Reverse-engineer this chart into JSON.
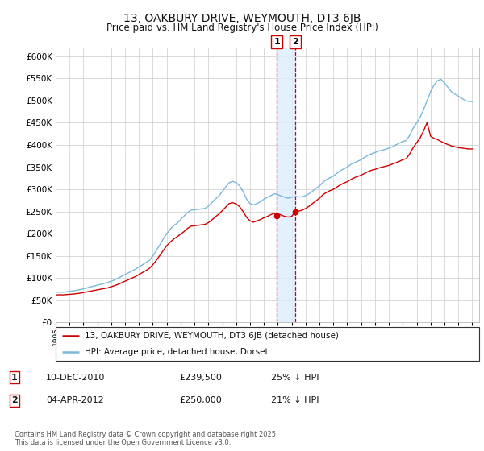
{
  "title": "13, OAKBURY DRIVE, WEYMOUTH, DT3 6JB",
  "subtitle": "Price paid vs. HM Land Registry's House Price Index (HPI)",
  "ylim": [
    0,
    620000
  ],
  "yticks": [
    0,
    50000,
    100000,
    150000,
    200000,
    250000,
    300000,
    350000,
    400000,
    450000,
    500000,
    550000,
    600000
  ],
  "background_color": "#ffffff",
  "plot_bg_color": "#ffffff",
  "grid_color": "#cccccc",
  "hpi_color": "#7ab8d9",
  "price_color": "#cc0000",
  "vline_color": "#cc0000",
  "vfill_color": "#ddeeff",
  "purchase1_x": 2010.94,
  "purchase1_price": 239500,
  "purchase2_x": 2012.26,
  "purchase2_price": 250000,
  "legend_label_price": "13, OAKBURY DRIVE, WEYMOUTH, DT3 6JB (detached house)",
  "legend_label_hpi": "HPI: Average price, detached house, Dorset",
  "note1_label": "1",
  "note1_date": "10-DEC-2010",
  "note1_price": "£239,500",
  "note1_pct": "25% ↓ HPI",
  "note2_label": "2",
  "note2_date": "04-APR-2012",
  "note2_price": "£250,000",
  "note2_pct": "21% ↓ HPI",
  "copyright": "Contains HM Land Registry data © Crown copyright and database right 2025.\nThis data is licensed under the Open Government Licence v3.0.",
  "xmin": 1995,
  "xmax": 2025.5,
  "hpi_data": [
    [
      1995.0,
      68000
    ],
    [
      1995.25,
      68500
    ],
    [
      1995.5,
      68200
    ],
    [
      1995.75,
      68800
    ],
    [
      1996.0,
      70000
    ],
    [
      1996.25,
      71000
    ],
    [
      1996.5,
      72500
    ],
    [
      1996.75,
      74000
    ],
    [
      1997.0,
      76000
    ],
    [
      1997.25,
      78000
    ],
    [
      1997.5,
      80000
    ],
    [
      1997.75,
      82000
    ],
    [
      1998.0,
      84000
    ],
    [
      1998.25,
      86000
    ],
    [
      1998.5,
      88000
    ],
    [
      1998.75,
      90000
    ],
    [
      1999.0,
      93000
    ],
    [
      1999.25,
      96000
    ],
    [
      1999.5,
      100000
    ],
    [
      1999.75,
      104000
    ],
    [
      2000.0,
      108000
    ],
    [
      2000.25,
      112000
    ],
    [
      2000.5,
      116000
    ],
    [
      2000.75,
      120000
    ],
    [
      2001.0,
      125000
    ],
    [
      2001.25,
      130000
    ],
    [
      2001.5,
      135000
    ],
    [
      2001.75,
      140000
    ],
    [
      2002.0,
      150000
    ],
    [
      2002.25,
      162000
    ],
    [
      2002.5,
      175000
    ],
    [
      2002.75,
      188000
    ],
    [
      2003.0,
      200000
    ],
    [
      2003.25,
      210000
    ],
    [
      2003.5,
      218000
    ],
    [
      2003.75,
      224000
    ],
    [
      2004.0,
      232000
    ],
    [
      2004.25,
      240000
    ],
    [
      2004.5,
      248000
    ],
    [
      2004.75,
      253000
    ],
    [
      2005.0,
      254000
    ],
    [
      2005.25,
      255000
    ],
    [
      2005.5,
      256000
    ],
    [
      2005.75,
      257000
    ],
    [
      2006.0,
      262000
    ],
    [
      2006.25,
      270000
    ],
    [
      2006.5,
      278000
    ],
    [
      2006.75,
      285000
    ],
    [
      2007.0,
      295000
    ],
    [
      2007.25,
      305000
    ],
    [
      2007.5,
      315000
    ],
    [
      2007.75,
      318000
    ],
    [
      2008.0,
      315000
    ],
    [
      2008.25,
      308000
    ],
    [
      2008.5,
      295000
    ],
    [
      2008.75,
      278000
    ],
    [
      2009.0,
      268000
    ],
    [
      2009.25,
      265000
    ],
    [
      2009.5,
      268000
    ],
    [
      2009.75,
      272000
    ],
    [
      2010.0,
      278000
    ],
    [
      2010.25,
      282000
    ],
    [
      2010.5,
      286000
    ],
    [
      2010.75,
      290000
    ],
    [
      2011.0,
      288000
    ],
    [
      2011.25,
      285000
    ],
    [
      2011.5,
      282000
    ],
    [
      2011.75,
      280000
    ],
    [
      2012.0,
      282000
    ],
    [
      2012.25,
      284000
    ],
    [
      2012.5,
      283000
    ],
    [
      2012.75,
      283000
    ],
    [
      2013.0,
      286000
    ],
    [
      2013.25,
      290000
    ],
    [
      2013.5,
      296000
    ],
    [
      2013.75,
      302000
    ],
    [
      2014.0,
      308000
    ],
    [
      2014.25,
      316000
    ],
    [
      2014.5,
      322000
    ],
    [
      2014.75,
      326000
    ],
    [
      2015.0,
      330000
    ],
    [
      2015.25,
      336000
    ],
    [
      2015.5,
      342000
    ],
    [
      2015.75,
      346000
    ],
    [
      2016.0,
      350000
    ],
    [
      2016.25,
      356000
    ],
    [
      2016.5,
      360000
    ],
    [
      2016.75,
      363000
    ],
    [
      2017.0,
      367000
    ],
    [
      2017.25,
      372000
    ],
    [
      2017.5,
      377000
    ],
    [
      2017.75,
      380000
    ],
    [
      2018.0,
      383000
    ],
    [
      2018.25,
      386000
    ],
    [
      2018.5,
      388000
    ],
    [
      2018.75,
      390000
    ],
    [
      2019.0,
      393000
    ],
    [
      2019.25,
      396000
    ],
    [
      2019.5,
      400000
    ],
    [
      2019.75,
      404000
    ],
    [
      2020.0,
      408000
    ],
    [
      2020.25,
      410000
    ],
    [
      2020.5,
      422000
    ],
    [
      2020.75,
      438000
    ],
    [
      2021.0,
      450000
    ],
    [
      2021.25,
      462000
    ],
    [
      2021.5,
      480000
    ],
    [
      2021.75,
      500000
    ],
    [
      2022.0,
      520000
    ],
    [
      2022.25,
      535000
    ],
    [
      2022.5,
      545000
    ],
    [
      2022.75,
      548000
    ],
    [
      2023.0,
      540000
    ],
    [
      2023.25,
      530000
    ],
    [
      2023.5,
      520000
    ],
    [
      2023.75,
      515000
    ],
    [
      2024.0,
      510000
    ],
    [
      2024.25,
      505000
    ],
    [
      2024.5,
      500000
    ],
    [
      2024.75,
      498000
    ],
    [
      2025.0,
      498000
    ]
  ],
  "price_data": [
    [
      1995.0,
      62000
    ],
    [
      1995.25,
      62500
    ],
    [
      1995.5,
      62200
    ],
    [
      1995.75,
      62800
    ],
    [
      1996.0,
      63500
    ],
    [
      1996.25,
      64000
    ],
    [
      1996.5,
      65000
    ],
    [
      1996.75,
      66000
    ],
    [
      1997.0,
      67500
    ],
    [
      1997.25,
      69000
    ],
    [
      1997.5,
      70500
    ],
    [
      1997.75,
      72000
    ],
    [
      1998.0,
      73500
    ],
    [
      1998.25,
      75000
    ],
    [
      1998.5,
      76500
    ],
    [
      1998.75,
      78000
    ],
    [
      1999.0,
      80500
    ],
    [
      1999.25,
      83000
    ],
    [
      1999.5,
      86000
    ],
    [
      1999.75,
      89500
    ],
    [
      2000.0,
      93000
    ],
    [
      2000.25,
      96500
    ],
    [
      2000.5,
      100000
    ],
    [
      2000.75,
      103500
    ],
    [
      2001.0,
      108000
    ],
    [
      2001.25,
      112500
    ],
    [
      2001.5,
      117000
    ],
    [
      2001.75,
      122000
    ],
    [
      2002.0,
      130000
    ],
    [
      2002.25,
      140000
    ],
    [
      2002.5,
      151000
    ],
    [
      2002.75,
      162000
    ],
    [
      2003.0,
      173000
    ],
    [
      2003.25,
      181000
    ],
    [
      2003.5,
      188000
    ],
    [
      2003.75,
      193000
    ],
    [
      2004.0,
      199000
    ],
    [
      2004.25,
      205000
    ],
    [
      2004.5,
      212000
    ],
    [
      2004.75,
      217000
    ],
    [
      2005.0,
      218000
    ],
    [
      2005.25,
      219000
    ],
    [
      2005.5,
      220000
    ],
    [
      2005.75,
      221000
    ],
    [
      2006.0,
      225000
    ],
    [
      2006.25,
      231000
    ],
    [
      2006.5,
      238000
    ],
    [
      2006.75,
      244000
    ],
    [
      2007.0,
      252000
    ],
    [
      2007.25,
      260000
    ],
    [
      2007.5,
      268000
    ],
    [
      2007.75,
      270000
    ],
    [
      2008.0,
      267000
    ],
    [
      2008.25,
      261000
    ],
    [
      2008.5,
      250000
    ],
    [
      2008.75,
      237000
    ],
    [
      2009.0,
      229000
    ],
    [
      2009.25,
      226000
    ],
    [
      2009.5,
      229000
    ],
    [
      2009.75,
      232000
    ],
    [
      2010.0,
      236000
    ],
    [
      2010.25,
      239000
    ],
    [
      2010.5,
      243000
    ],
    [
      2010.75,
      246000
    ],
    [
      2010.94,
      239500
    ],
    [
      2011.0,
      245000
    ],
    [
      2011.25,
      242000
    ],
    [
      2011.5,
      239000
    ],
    [
      2011.75,
      237500
    ],
    [
      2012.0,
      239000
    ],
    [
      2012.26,
      250000
    ],
    [
      2012.5,
      251000
    ],
    [
      2012.75,
      253000
    ],
    [
      2013.0,
      257000
    ],
    [
      2013.25,
      262000
    ],
    [
      2013.5,
      268000
    ],
    [
      2013.75,
      274000
    ],
    [
      2014.0,
      280000
    ],
    [
      2014.25,
      288000
    ],
    [
      2014.5,
      293000
    ],
    [
      2014.75,
      297000
    ],
    [
      2015.0,
      300000
    ],
    [
      2015.25,
      305000
    ],
    [
      2015.5,
      310000
    ],
    [
      2015.75,
      314000
    ],
    [
      2016.0,
      317000
    ],
    [
      2016.25,
      322000
    ],
    [
      2016.5,
      326000
    ],
    [
      2016.75,
      329000
    ],
    [
      2017.0,
      332000
    ],
    [
      2017.25,
      336000
    ],
    [
      2017.5,
      340000
    ],
    [
      2017.75,
      343000
    ],
    [
      2018.0,
      345000
    ],
    [
      2018.25,
      348000
    ],
    [
      2018.5,
      350000
    ],
    [
      2018.75,
      352000
    ],
    [
      2019.0,
      354000
    ],
    [
      2019.25,
      357000
    ],
    [
      2019.5,
      360000
    ],
    [
      2019.75,
      363000
    ],
    [
      2020.0,
      367000
    ],
    [
      2020.25,
      369000
    ],
    [
      2020.5,
      380000
    ],
    [
      2020.75,
      394000
    ],
    [
      2021.0,
      405000
    ],
    [
      2021.25,
      416000
    ],
    [
      2021.5,
      432000
    ],
    [
      2021.75,
      450000
    ],
    [
      2022.0,
      420000
    ],
    [
      2022.25,
      415000
    ],
    [
      2022.5,
      412000
    ],
    [
      2022.75,
      408000
    ],
    [
      2023.0,
      404000
    ],
    [
      2023.25,
      401000
    ],
    [
      2023.5,
      398000
    ],
    [
      2023.75,
      396000
    ],
    [
      2024.0,
      394000
    ],
    [
      2024.25,
      393000
    ],
    [
      2024.5,
      392000
    ],
    [
      2024.75,
      391000
    ],
    [
      2025.0,
      391000
    ]
  ]
}
